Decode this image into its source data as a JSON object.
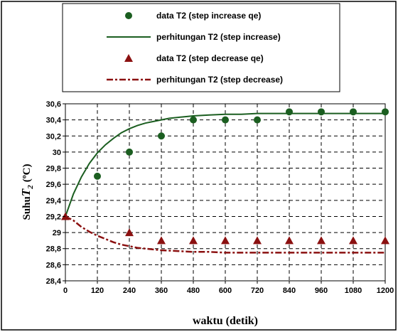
{
  "chart_data": {
    "type": "scatter",
    "xlabel": "waktu (detik)",
    "ylabel": {
      "prefix": "Suhu",
      "var": "T",
      "sub": "2",
      "unit": "(ºC)"
    },
    "xlim": [
      0,
      1200
    ],
    "ylim": [
      28.4,
      30.6
    ],
    "xticks": [
      0,
      120,
      240,
      360,
      480,
      600,
      720,
      840,
      960,
      1080,
      1200
    ],
    "yticks": [
      {
        "v": 28.4,
        "label": "28,4"
      },
      {
        "v": 28.6,
        "label": "28,6"
      },
      {
        "v": 28.8,
        "label": "28,8"
      },
      {
        "v": 29.0,
        "label": "29"
      },
      {
        "v": 29.2,
        "label": "29,2"
      },
      {
        "v": 29.4,
        "label": "29,4"
      },
      {
        "v": 29.6,
        "label": "29,6"
      },
      {
        "v": 29.8,
        "label": "29,8"
      },
      {
        "v": 30.0,
        "label": "30"
      },
      {
        "v": 30.2,
        "label": "30,2"
      },
      {
        "v": 30.4,
        "label": "30,4"
      },
      {
        "v": 30.6,
        "label": "30,6"
      }
    ],
    "grid": true,
    "legend_position": "top",
    "series": [
      {
        "name": "data T2 (step increase qe)",
        "kind": "markers",
        "marker": "circle",
        "color": "#1b5e20",
        "x": [
          120,
          240,
          360,
          480,
          600,
          720,
          840,
          960,
          1080,
          1200
        ],
        "y": [
          29.7,
          30.0,
          30.2,
          30.4,
          30.4,
          30.4,
          30.5,
          30.5,
          30.5,
          30.5
        ]
      },
      {
        "name": "perhitungan T2 (step increase)",
        "kind": "line",
        "style": "solid",
        "color": "#1b5e20",
        "x": [
          0,
          30,
          60,
          90,
          120,
          150,
          180,
          210,
          240,
          270,
          300,
          330,
          360,
          390,
          420,
          450,
          480,
          540,
          600,
          660,
          720,
          780,
          840,
          900,
          960,
          1020,
          1080,
          1140,
          1200
        ],
        "y": [
          29.2,
          29.48,
          29.69,
          29.86,
          29.99,
          30.09,
          30.17,
          30.24,
          30.29,
          30.33,
          30.36,
          30.38,
          30.4,
          30.42,
          30.43,
          30.44,
          30.45,
          30.46,
          30.47,
          30.47,
          30.48,
          30.48,
          30.48,
          30.48,
          30.48,
          30.48,
          30.48,
          30.48,
          30.48
        ]
      },
      {
        "name": "data T2 (step decrease qe)",
        "kind": "markers",
        "marker": "triangle",
        "color": "#8b1010",
        "x": [
          0,
          240,
          360,
          480,
          600,
          720,
          840,
          960,
          1080,
          1200
        ],
        "y": [
          29.2,
          29.0,
          28.9,
          28.9,
          28.9,
          28.9,
          28.9,
          28.9,
          28.9,
          28.9
        ]
      },
      {
        "name": "perhitungan T2 (step decrease)",
        "kind": "line",
        "style": "dashdot",
        "color": "#8b1010",
        "x": [
          0,
          30,
          60,
          90,
          120,
          150,
          180,
          210,
          240,
          270,
          300,
          330,
          360,
          420,
          480,
          540,
          600,
          720,
          840,
          960,
          1080,
          1200
        ],
        "y": [
          29.2,
          29.15,
          29.07,
          29.01,
          28.96,
          28.92,
          28.88,
          28.85,
          28.83,
          28.81,
          28.8,
          28.79,
          28.78,
          28.77,
          28.76,
          28.76,
          28.75,
          28.75,
          28.75,
          28.75,
          28.75,
          28.75
        ]
      }
    ]
  }
}
